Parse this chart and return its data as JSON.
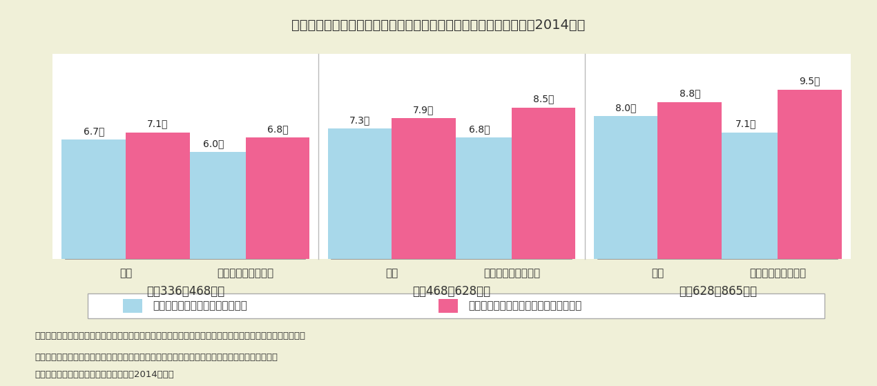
{
  "title": "図表１　年金受給世帯の支出状況（月間・私的年金の受給状況別・2014年）",
  "bg_color": "#f0f0d8",
  "chart_bg": "#ffffff",
  "bar_blue": "#a8d8ea",
  "bar_pink": "#f06292",
  "groups": [
    {
      "income_range": "年収336～468万円",
      "categories": [
        "食費",
        "レジャー・交際費等"
      ],
      "blue_values": [
        6.7,
        6.0
      ],
      "pink_values": [
        7.1,
        6.8
      ]
    },
    {
      "income_range": "年収468～628万円",
      "categories": [
        "食費",
        "レジャー・交際費等"
      ],
      "blue_values": [
        7.3,
        6.8
      ],
      "pink_values": [
        7.9,
        8.5
      ]
    },
    {
      "income_range": "年収628～865万円",
      "categories": [
        "食費",
        "レジャー・交際費等"
      ],
      "blue_values": [
        8.0,
        7.1
      ],
      "pink_values": [
        8.8,
        9.5
      ]
    }
  ],
  "legend_blue": "公的年金のみを受給している世帯",
  "legend_pink": "公的年金と私的年金を受給している世帯",
  "note1": "（注１）レジャー・交際費等は、全国消費実態調査の再掲項目である教養娯楽関係費（いわゆるレジャー関係費。教養娯楽費に鉄道運賃や航空運賃などを加えたもの）に、交際費とこづかいを加えたもの。",
  "note2": "　費。教養娯楽費に鉄道運賃や航空運賃などを加えたもの）に、交際費とこづかいを加えたもの。",
  "note3": "（資料）総務省「全国消費実態調査」（2014年）。",
  "ylim": [
    0,
    11.5
  ],
  "bar_width": 0.32,
  "title_fontsize": 14,
  "label_fontsize": 10,
  "value_fontsize": 10,
  "cat_fontsize": 11,
  "income_fontsize": 12,
  "legend_fontsize": 11,
  "note_fontsize": 9.5
}
